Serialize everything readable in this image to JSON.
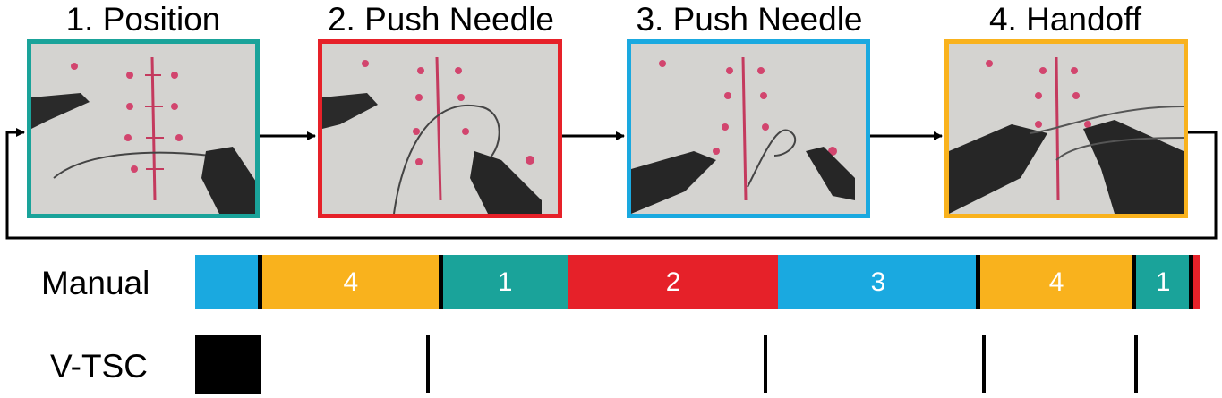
{
  "stages": [
    {
      "label": "1. Position",
      "color": "#1aa39a"
    },
    {
      "label": "2. Push Needle",
      "color": "#e62129"
    },
    {
      "label": "3. Push Needle",
      "color": "#1aa9e0"
    },
    {
      "label": "4. Handoff",
      "color": "#f9b21d"
    }
  ],
  "rows": {
    "manual_label": "Manual",
    "vtsc_label": "V-TSC"
  },
  "chart_data": {
    "type": "timeline",
    "manual_segments": [
      {
        "stage": 3,
        "label": "",
        "start": 0.0,
        "end": 0.065
      },
      {
        "stage": 4,
        "label": "4",
        "start": 0.065,
        "end": 0.245
      },
      {
        "stage": 1,
        "label": "1",
        "start": 0.245,
        "end": 0.372
      },
      {
        "stage": 2,
        "label": "2",
        "start": 0.372,
        "end": 0.58
      },
      {
        "stage": 3,
        "label": "3",
        "start": 0.58,
        "end": 0.78
      },
      {
        "stage": 4,
        "label": "4",
        "start": 0.78,
        "end": 0.935
      },
      {
        "stage": 1,
        "label": "1",
        "start": 0.935,
        "end": 0.992
      },
      {
        "stage": 2,
        "label": "",
        "start": 0.992,
        "end": 1.0
      }
    ],
    "manual_boundaries": [
      0.065,
      0.245,
      0.78,
      0.935,
      0.992
    ],
    "vtsc_marks": [
      {
        "start": 0.0,
        "end": 0.065,
        "type": "block"
      },
      {
        "start": 0.232,
        "end": 0.232,
        "type": "line"
      },
      {
        "start": 0.568,
        "end": 0.568,
        "type": "line"
      },
      {
        "start": 0.785,
        "end": 0.785,
        "type": "line"
      },
      {
        "start": 0.937,
        "end": 0.937,
        "type": "line"
      }
    ]
  }
}
